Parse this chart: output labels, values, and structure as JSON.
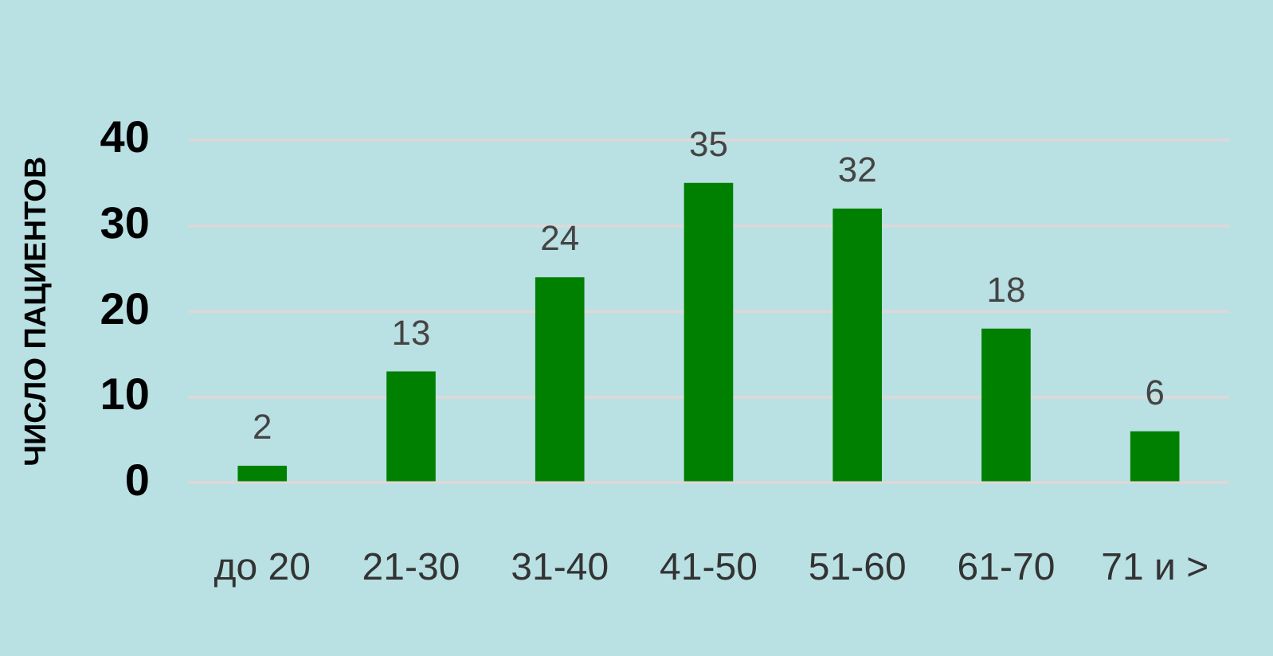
{
  "chart_data": {
    "type": "bar",
    "ylabel": "ЧИСЛО ПАЦИЕНТОВ",
    "categories": [
      "до 20",
      "21-30",
      "31-40",
      "41-50",
      "51-60",
      "61-70",
      "71 и >"
    ],
    "values": [
      2,
      13,
      24,
      35,
      32,
      18,
      6
    ],
    "color": "#008000",
    "ylim": [
      0,
      40
    ],
    "yticks": [
      0,
      10,
      20,
      30,
      40
    ],
    "grid": "y",
    "data_labels": true,
    "legend": false
  }
}
